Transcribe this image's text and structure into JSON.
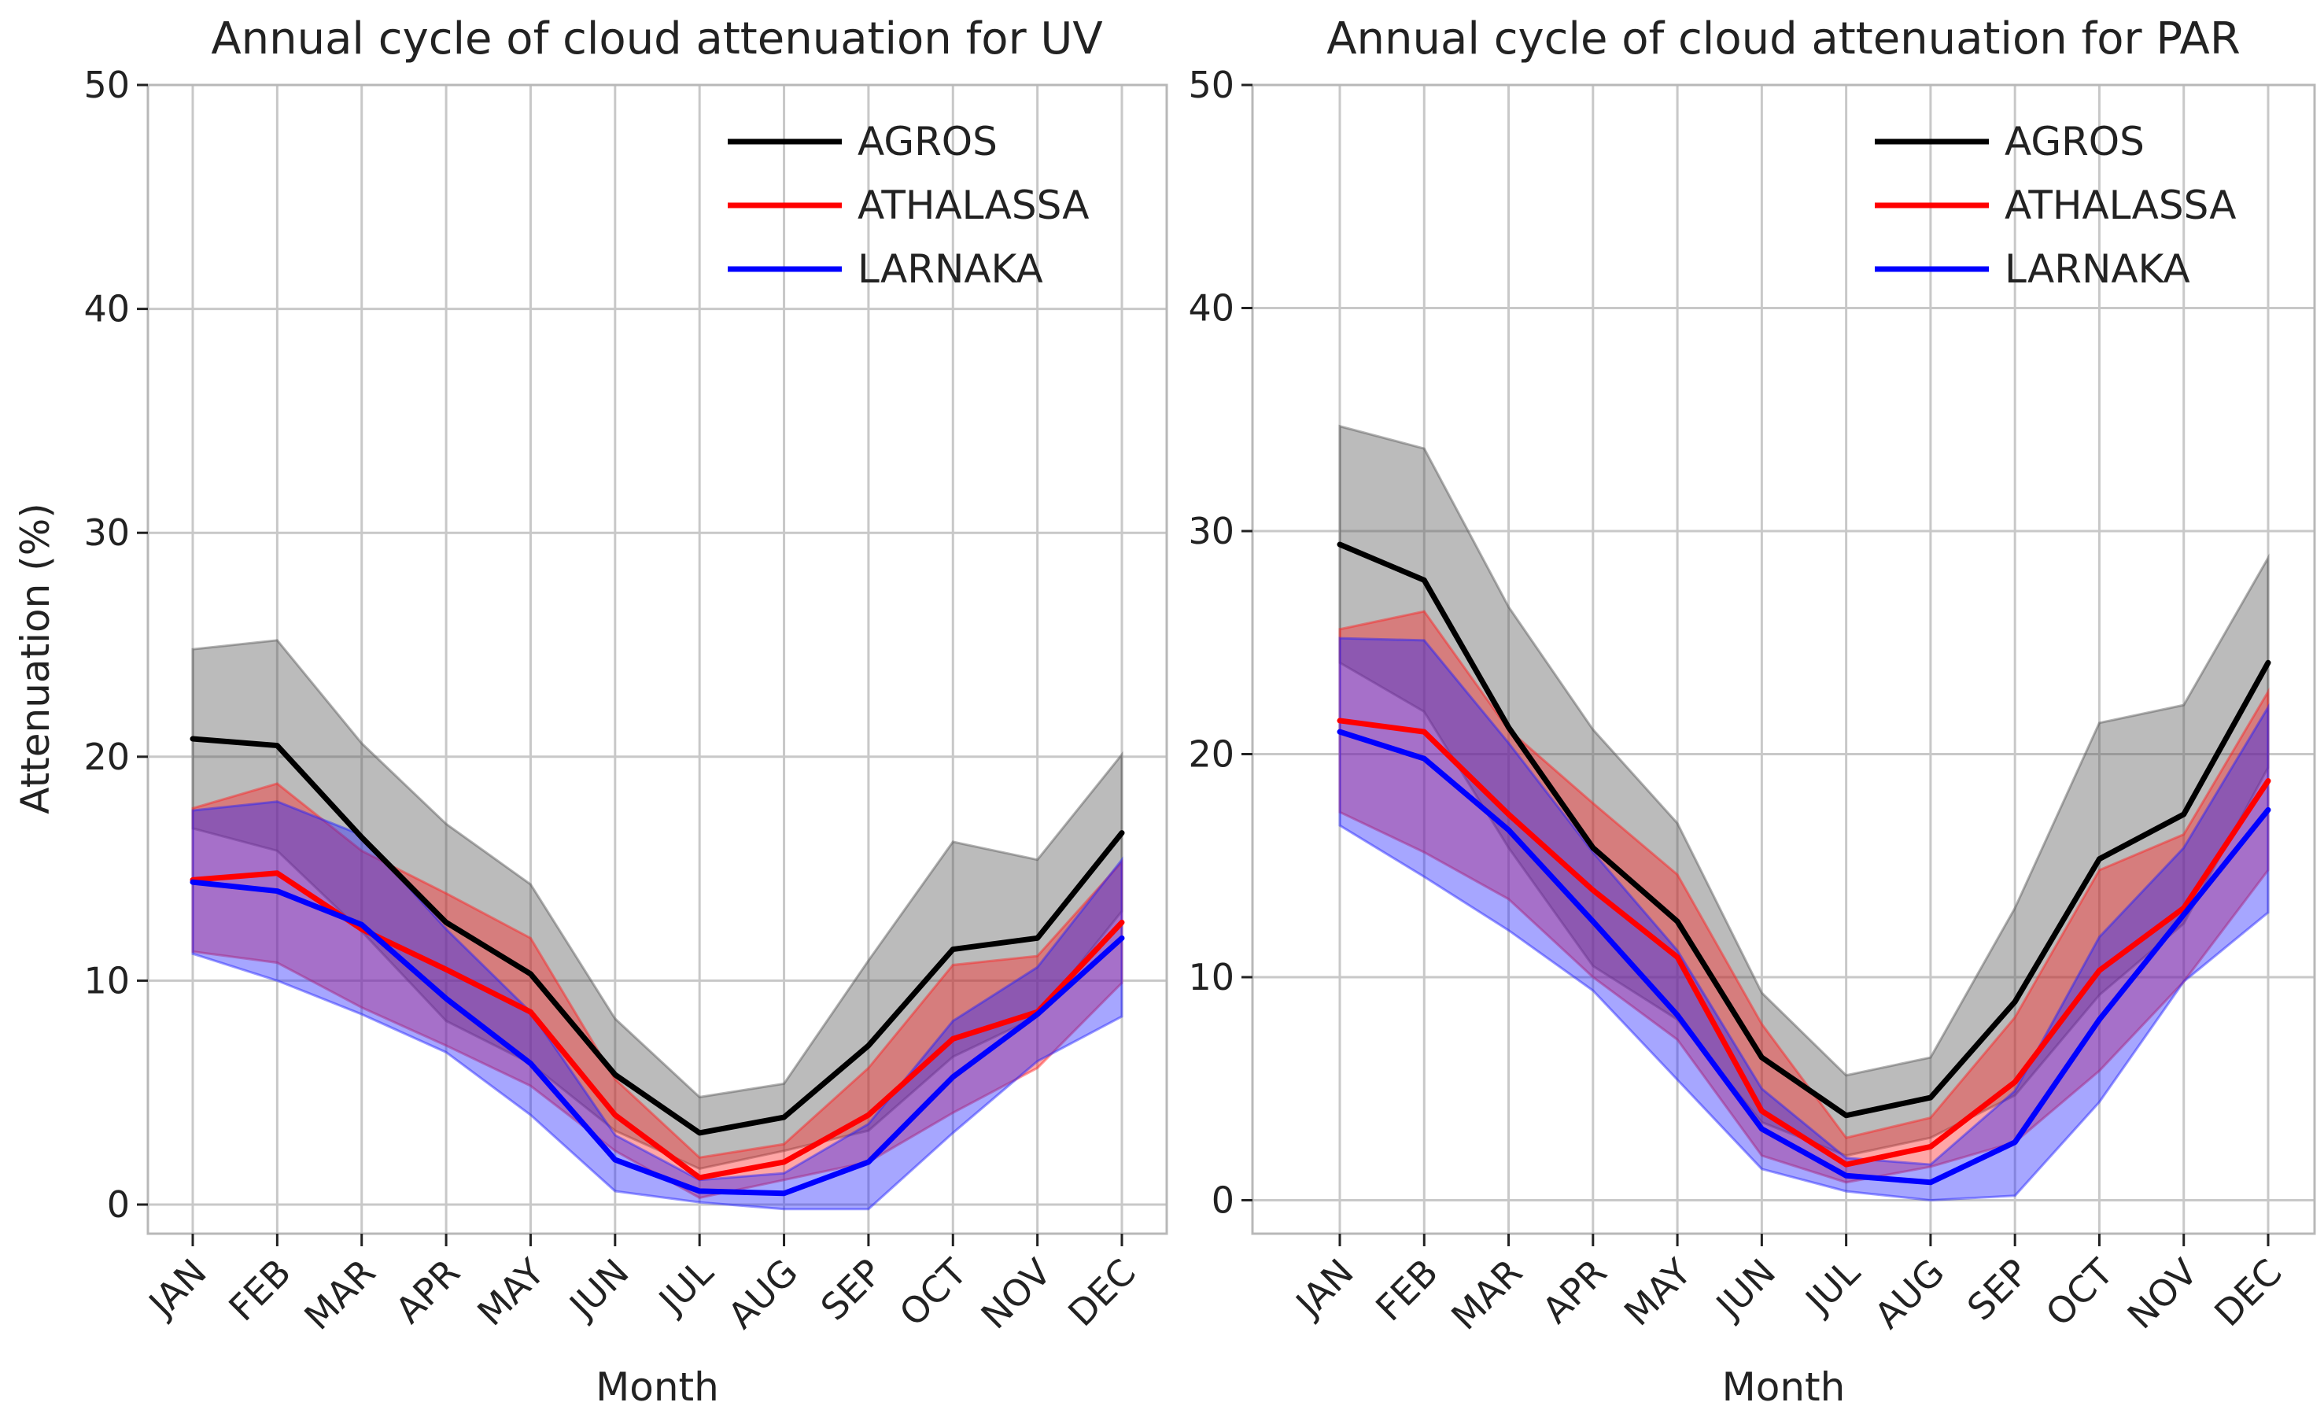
{
  "chart_data": [
    {
      "type": "line",
      "title": "Annual cycle of cloud attenuation for UV",
      "xlabel": "Month",
      "ylabel": "Attenuation (%)",
      "categories": [
        "JAN",
        "FEB",
        "MAR",
        "APR",
        "MAY",
        "JUN",
        "JUL",
        "AUG",
        "SEP",
        "OCT",
        "NOV",
        "DEC"
      ],
      "ylim": [
        -1.3,
        50
      ],
      "yticks": [
        0,
        10,
        20,
        30,
        40,
        50
      ],
      "grid": true,
      "legend_position": "top-right",
      "series": [
        {
          "name": "AGROS",
          "color": "#000000",
          "band_color": "#555555",
          "values": [
            20.8,
            20.5,
            16.4,
            12.6,
            10.3,
            5.8,
            3.2,
            3.9,
            7.1,
            11.4,
            11.9,
            16.6
          ],
          "upper": [
            24.8,
            25.2,
            20.6,
            17.0,
            14.3,
            8.3,
            4.8,
            5.4,
            10.9,
            16.2,
            15.4,
            20.1
          ],
          "lower": [
            16.8,
            15.8,
            12.2,
            8.2,
            6.3,
            3.3,
            1.6,
            2.4,
            3.3,
            6.6,
            8.4,
            13.1
          ]
        },
        {
          "name": "ATHALASSA",
          "color": "#ff0000",
          "band_color": "#ff2020",
          "values": [
            14.5,
            14.8,
            12.3,
            10.5,
            8.6,
            4.0,
            1.2,
            1.9,
            4.0,
            7.4,
            8.6,
            12.6
          ],
          "upper": [
            17.7,
            18.8,
            15.8,
            13.9,
            11.9,
            5.6,
            2.1,
            2.7,
            6.1,
            10.7,
            11.1,
            15.3
          ],
          "lower": [
            11.3,
            10.8,
            8.8,
            7.1,
            5.3,
            2.4,
            0.3,
            1.1,
            1.9,
            4.1,
            6.1,
            9.9
          ]
        },
        {
          "name": "LARNAKA",
          "color": "#0000ff",
          "band_color": "#2020ff",
          "values": [
            14.4,
            14.0,
            12.5,
            9.2,
            6.3,
            2.0,
            0.6,
            0.5,
            1.9,
            5.7,
            8.5,
            11.9
          ],
          "upper": [
            17.6,
            18.0,
            16.5,
            12.3,
            8.6,
            3.1,
            1.1,
            1.4,
            3.6,
            8.2,
            10.6,
            15.4
          ],
          "lower": [
            11.2,
            10.0,
            8.5,
            6.8,
            4.0,
            0.6,
            0.1,
            -0.2,
            -0.2,
            3.2,
            6.4,
            8.4
          ]
        }
      ]
    },
    {
      "type": "line",
      "title": "Annual cycle of cloud attenuation for PAR",
      "xlabel": "Month",
      "ylabel": "",
      "categories": [
        "JAN",
        "FEB",
        "MAR",
        "APR",
        "MAY",
        "JUN",
        "JUL",
        "AUG",
        "SEP",
        "OCT",
        "NOV",
        "DEC"
      ],
      "ylim": [
        -1.5,
        50
      ],
      "yticks": [
        0,
        10,
        20,
        30,
        40,
        50
      ],
      "grid": true,
      "legend_position": "top-right",
      "series": [
        {
          "name": "AGROS",
          "color": "#000000",
          "band_color": "#555555",
          "values": [
            29.4,
            27.8,
            21.2,
            15.8,
            12.5,
            6.4,
            3.8,
            4.6,
            8.9,
            15.3,
            17.3,
            24.1
          ],
          "upper": [
            34.7,
            33.7,
            26.6,
            21.1,
            16.9,
            9.3,
            5.6,
            6.4,
            13.1,
            21.4,
            22.2,
            28.8
          ],
          "lower": [
            24.1,
            21.9,
            15.8,
            10.5,
            8.1,
            3.5,
            2.0,
            2.8,
            4.7,
            9.2,
            12.4,
            19.4
          ]
        },
        {
          "name": "ATHALASSA",
          "color": "#ff0000",
          "band_color": "#ff2020",
          "values": [
            21.5,
            21.0,
            17.3,
            13.9,
            10.9,
            4.0,
            1.6,
            2.4,
            5.3,
            10.3,
            13.1,
            18.8
          ],
          "upper": [
            25.6,
            26.4,
            21.1,
            17.8,
            14.6,
            7.9,
            2.8,
            3.7,
            8.2,
            14.8,
            16.4,
            22.8
          ],
          "lower": [
            17.4,
            15.6,
            13.5,
            10.0,
            7.2,
            2.0,
            0.8,
            1.5,
            2.6,
            5.8,
            9.8,
            14.8
          ]
        },
        {
          "name": "LARNAKA",
          "color": "#0000ff",
          "band_color": "#2020ff",
          "values": [
            21.0,
            19.8,
            16.6,
            12.5,
            8.3,
            3.2,
            1.1,
            0.8,
            2.6,
            8.1,
            12.8,
            17.5
          ],
          "upper": [
            25.2,
            25.1,
            20.5,
            15.6,
            11.2,
            5.0,
            1.9,
            1.6,
            4.9,
            11.8,
            15.8,
            22.1
          ],
          "lower": [
            16.8,
            14.5,
            12.1,
            9.4,
            5.4,
            1.4,
            0.4,
            0.0,
            0.2,
            4.4,
            9.8,
            12.9
          ]
        }
      ]
    }
  ]
}
